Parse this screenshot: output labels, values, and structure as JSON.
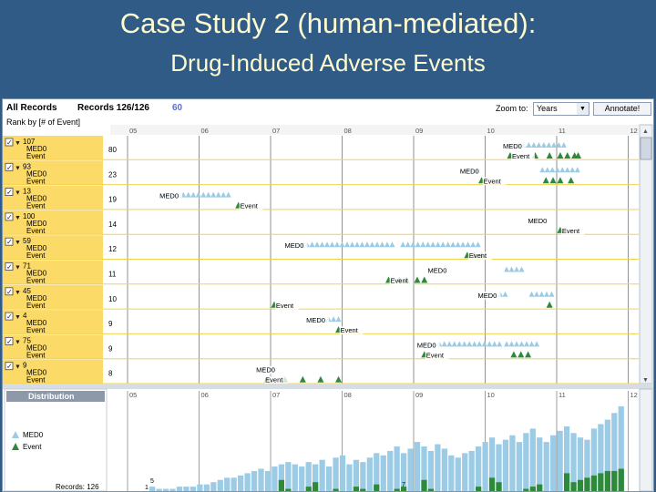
{
  "slide": {
    "title": "Case Study 2 (human-mediated):",
    "subtitle": "Drug-Induced Adverse Events"
  },
  "toolbar": {
    "all_records": "All Records",
    "records_label": "Records 126/126",
    "selected_count": "60",
    "zoom_label": "Zoom to:",
    "zoom_value": "Years",
    "annotate_label": "Annotate!",
    "rank_by": "Rank by [# of Event]"
  },
  "timeline": {
    "year_ticks": [
      "05",
      "06",
      "07",
      "08",
      "09",
      "10",
      "11",
      "12"
    ],
    "rows": [
      {
        "id": "107",
        "labels": [
          "MED0",
          "Event"
        ],
        "count": "80"
      },
      {
        "id": "93",
        "labels": [
          "MED0",
          "Event"
        ],
        "count": "23"
      },
      {
        "id": "13",
        "labels": [
          "MED0",
          "Event"
        ],
        "count": "19"
      },
      {
        "id": "100",
        "labels": [
          "MED0",
          "Event"
        ],
        "count": "14"
      },
      {
        "id": "59",
        "labels": [
          "MED0",
          "Event"
        ],
        "count": "12"
      },
      {
        "id": "71",
        "labels": [
          "MED0",
          "Event"
        ],
        "count": "11"
      },
      {
        "id": "45",
        "labels": [
          "MED0",
          "Event"
        ],
        "count": "10"
      },
      {
        "id": "4",
        "labels": [
          "MED0",
          "Event"
        ],
        "count": "9"
      },
      {
        "id": "75",
        "labels": [
          "MED0",
          "Event"
        ],
        "count": "9"
      },
      {
        "id": "9",
        "labels": [
          "MED0",
          "Event"
        ],
        "count": "8"
      }
    ],
    "annotations": [
      {
        "row": 0,
        "text": "MED0",
        "year": 2010.35
      },
      {
        "row": 0,
        "text": "Event",
        "year": 2010.35
      },
      {
        "row": 1,
        "text": "MED0",
        "year": 2009.75
      },
      {
        "row": 1,
        "text": "Event",
        "year": 2009.95
      },
      {
        "row": 2,
        "text": "MED0",
        "year": 2005.55
      },
      {
        "row": 2,
        "text": "Event",
        "year": 2006.55
      },
      {
        "row": 3,
        "text": "MED0",
        "year": 2010.7
      },
      {
        "row": 3,
        "text": "Event",
        "year": 2011.05
      },
      {
        "row": 4,
        "text": "MED0",
        "year": 2007.3
      },
      {
        "row": 4,
        "text": "Event",
        "year": 2009.75
      },
      {
        "row": 5,
        "text": "MED0",
        "year": 2009.3
      },
      {
        "row": 5,
        "text": "Event",
        "year": 2008.65
      },
      {
        "row": 6,
        "text": "MED0",
        "year": 2010.0
      },
      {
        "row": 6,
        "text": "Event",
        "year": 2007.05
      },
      {
        "row": 7,
        "text": "MED0",
        "year": 2007.6
      },
      {
        "row": 7,
        "text": "Event",
        "year": 2007.95
      },
      {
        "row": 8,
        "text": "MED0",
        "year": 2009.15
      },
      {
        "row": 8,
        "text": "Event",
        "year": 2009.15
      },
      {
        "row": 9,
        "text": "MED0",
        "year": 2006.9
      },
      {
        "row": 9,
        "text": "Event",
        "year": 2006.9
      }
    ],
    "events": [
      {
        "row": 0,
        "med": [
          [
            2010.4,
            2011.1
          ]
        ],
        "evt": [
          2010.35,
          2010.7,
          2010.9,
          2011.05,
          2011.15,
          2011.25,
          2011.3
        ]
      },
      {
        "row": 1,
        "med": [
          [
            2009.75,
            2009.95
          ],
          [
            2010.8,
            2011.35
          ]
        ],
        "evt": [
          2009.95,
          2010.85,
          2010.95,
          2011.05,
          2011.2
        ]
      },
      {
        "row": 2,
        "med": [
          [
            2005.5,
            2006.45
          ]
        ],
        "evt": [
          2006.55
        ]
      },
      {
        "row": 3,
        "med": [
          [
            2010.65,
            2010.8
          ]
        ],
        "evt": [
          2011.05
        ]
      },
      {
        "row": 4,
        "med": [
          [
            2007.3,
            2008.75
          ],
          [
            2008.85,
            2009.95
          ]
        ],
        "evt": [
          2009.75,
          2009.85,
          2009.95
        ]
      },
      {
        "row": 5,
        "med": [
          [
            2009.3,
            2009.4
          ],
          [
            2010.3,
            2010.55
          ]
        ],
        "evt": [
          2008.65,
          2008.8,
          2008.9,
          2009.05,
          2009.15
        ]
      },
      {
        "row": 6,
        "med": [
          [
            2010.0,
            2010.3
          ],
          [
            2010.65,
            2010.95
          ]
        ],
        "evt": [
          2007.05,
          2010.9
        ]
      },
      {
        "row": 7,
        "med": [
          [
            2007.6,
            2007.95
          ]
        ],
        "evt": [
          2007.95
        ]
      },
      {
        "row": 8,
        "med": [
          [
            2009.15,
            2010.2
          ],
          [
            2010.3,
            2010.75
          ]
        ],
        "evt": [
          2009.15,
          2010.4,
          2010.5,
          2010.6
        ]
      },
      {
        "row": 9,
        "med": [
          [
            2006.9,
            2007.05
          ]
        ],
        "evt": [
          2006.95,
          2007.2,
          2007.45,
          2007.7,
          2007.95
        ]
      }
    ]
  },
  "distribution": {
    "title": "Distribution",
    "legend": [
      "MED0",
      "Event"
    ],
    "records": "Records: 126",
    "marker_labels": [
      "5",
      "1",
      "7"
    ],
    "med_counts": [
      2,
      1,
      1,
      1,
      2,
      2,
      2,
      3,
      3,
      4,
      5,
      6,
      6,
      7,
      8,
      9,
      10,
      9,
      11,
      12,
      13,
      12,
      11,
      13,
      12,
      14,
      11,
      15,
      16,
      12,
      14,
      13,
      15,
      17,
      16,
      18,
      20,
      17,
      19,
      22,
      20,
      18,
      21,
      19,
      16,
      15,
      17,
      18,
      20,
      22,
      24,
      21,
      23,
      25,
      22,
      26,
      28,
      24,
      22,
      25,
      27,
      29,
      26,
      24,
      23,
      28,
      30,
      32,
      35,
      38
    ],
    "evt_counts": [
      0,
      0,
      0,
      0,
      0,
      0,
      0,
      0,
      0,
      0,
      0,
      0,
      0,
      0,
      0,
      0,
      0,
      0,
      0,
      5,
      1,
      0,
      0,
      2,
      4,
      0,
      0,
      1,
      0,
      0,
      2,
      1,
      0,
      3,
      0,
      0,
      1,
      2,
      0,
      0,
      5,
      1,
      0,
      0,
      0,
      0,
      0,
      0,
      2,
      0,
      6,
      4,
      0,
      0,
      0,
      1,
      2,
      3,
      0,
      0,
      0,
      8,
      4,
      5,
      6,
      7,
      8,
      9,
      9,
      10
    ]
  },
  "colors": {
    "med": "#9ccbe6",
    "event": "#2d8a3a",
    "label_bg": "#fbd44e",
    "row_line": "#f0d34e",
    "year_line": "#777777"
  }
}
